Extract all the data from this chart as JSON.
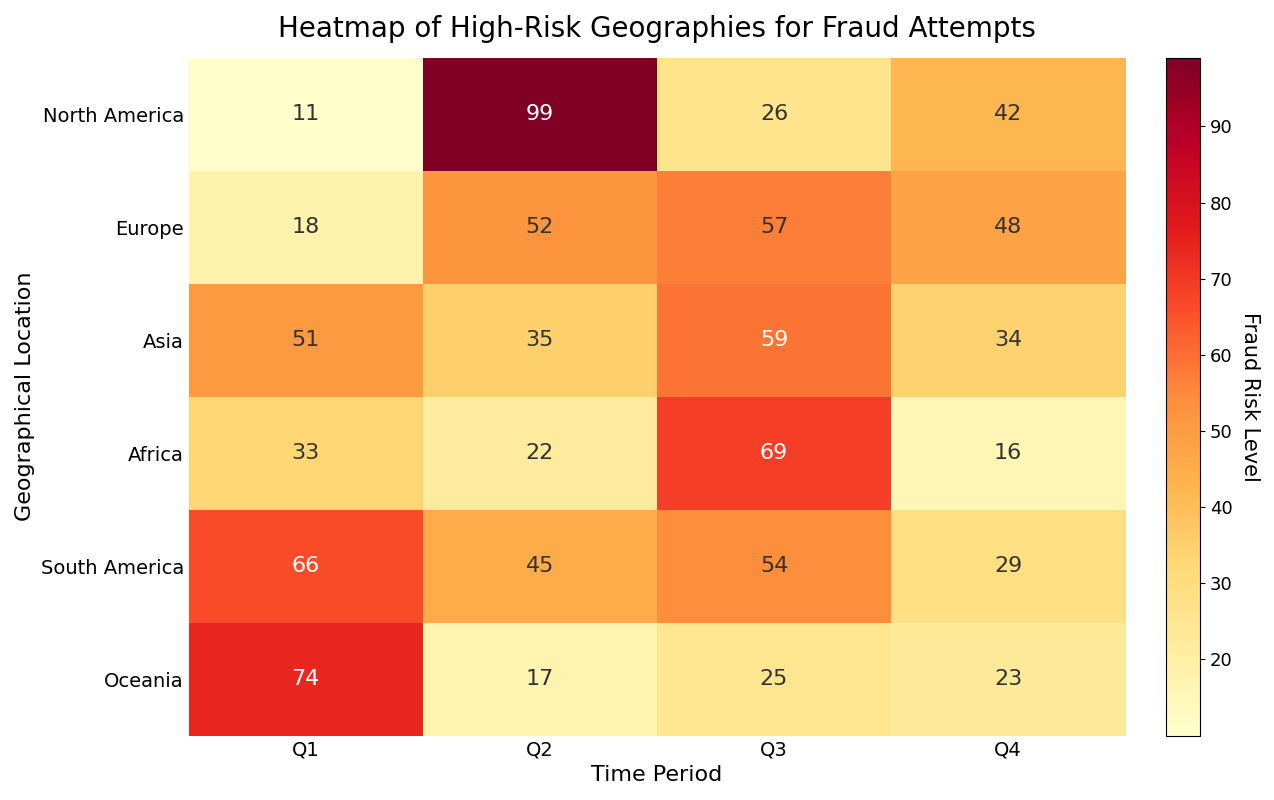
{
  "title": "Heatmap of High-Risk Geographies for Fraud Attempts",
  "xlabel": "Time Period",
  "ylabel": "Geographical Location",
  "colorbar_label": "Fraud Risk Level",
  "x_labels": [
    "Q1",
    "Q2",
    "Q3",
    "Q4"
  ],
  "y_labels": [
    "North America",
    "Europe",
    "Asia",
    "Africa",
    "South America",
    "Oceania"
  ],
  "values": [
    [
      11,
      99,
      26,
      42
    ],
    [
      18,
      52,
      57,
      48
    ],
    [
      51,
      35,
      59,
      34
    ],
    [
      33,
      22,
      69,
      16
    ],
    [
      66,
      45,
      54,
      29
    ],
    [
      74,
      17,
      25,
      23
    ]
  ],
  "colormap": "YlOrRd",
  "vmin": 10,
  "vmax": 99,
  "title_fontsize": 20,
  "label_fontsize": 16,
  "tick_fontsize": 14,
  "annot_fontsize": 16,
  "colorbar_tick_fontsize": 13,
  "colorbar_label_fontsize": 15,
  "colorbar_ticks": [
    20,
    30,
    40,
    50,
    60,
    70,
    80,
    90
  ],
  "figsize": [
    12.74,
    8.0
  ],
  "dpi": 100,
  "white_text_threshold": 0.55
}
